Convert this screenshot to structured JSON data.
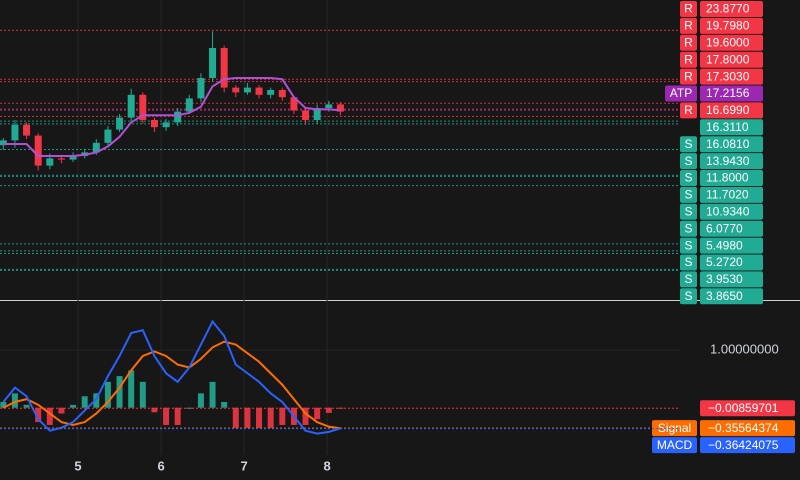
{
  "chart_data": [
    {
      "type": "candlestick",
      "x": [
        4.1,
        4.24,
        4.38,
        4.52,
        4.66,
        4.8,
        4.94,
        5.08,
        5.22,
        5.36,
        5.5,
        5.64,
        5.78,
        5.92,
        6.06,
        6.2,
        6.34,
        6.48,
        6.62,
        6.76,
        6.9,
        7.04,
        7.18,
        7.32,
        7.46,
        7.6,
        7.74,
        7.88,
        8.02,
        8.16
      ],
      "open": [
        14.3,
        14.7,
        16.0,
        15.1,
        12.6,
        13.2,
        13.1,
        13.4,
        13.7,
        14.5,
        15.6,
        16.6,
        18.5,
        16.4,
        15.8,
        16.2,
        17.1,
        18.2,
        19.9,
        22.4,
        19.1,
        18.7,
        19.1,
        18.5,
        18.9,
        18.3,
        17.2,
        16.4,
        17.4,
        17.7
      ],
      "high": [
        14.9,
        16.4,
        16.2,
        15.3,
        13.6,
        13.5,
        13.7,
        14.0,
        14.8,
        15.9,
        16.9,
        19.0,
        18.7,
        16.6,
        16.5,
        17.4,
        18.5,
        20.3,
        23.8,
        22.6,
        19.3,
        19.5,
        19.3,
        19.1,
        19.1,
        18.4,
        17.4,
        17.7,
        18.0,
        17.9
      ],
      "low": [
        13.9,
        14.1,
        14.8,
        12.2,
        12.3,
        12.8,
        12.9,
        13.2,
        13.5,
        14.3,
        15.4,
        16.3,
        16.1,
        15.4,
        15.5,
        15.9,
        16.9,
        17.9,
        19.6,
        18.7,
        18.3,
        18.5,
        18.2,
        18.2,
        18.0,
        16.9,
        16.0,
        16.1,
        17.1,
        16.8
      ],
      "close": [
        14.7,
        16.0,
        15.1,
        12.6,
        13.2,
        13.1,
        13.4,
        13.7,
        14.5,
        15.6,
        16.6,
        18.5,
        16.4,
        15.8,
        16.2,
        17.1,
        18.2,
        19.9,
        22.4,
        19.1,
        18.7,
        19.1,
        18.5,
        18.9,
        18.3,
        17.2,
        16.4,
        17.4,
        17.7,
        17.1
      ],
      "up_color": "#22ab94",
      "down_color": "#f23645",
      "atp_line": {
        "color": "#b14fd6",
        "values": [
          14.4,
          14.4,
          14.4,
          13.4,
          13.4,
          13.4,
          13.4,
          13.5,
          13.7,
          14.2,
          15.0,
          16.2,
          16.8,
          16.8,
          16.8,
          16.8,
          17.0,
          17.5,
          19.2,
          19.8,
          19.9,
          19.9,
          19.9,
          19.9,
          19.8,
          18.3,
          17.4,
          17.3,
          17.3,
          17.2
        ]
      },
      "levels": [
        {
          "tag": "R",
          "value": 23.877,
          "label": "23.8770",
          "color": "#f23645"
        },
        {
          "tag": "R",
          "value": 19.798,
          "label": "19.7980",
          "color": "#f23645"
        },
        {
          "tag": "R",
          "value": 19.6,
          "label": "19.6000",
          "color": "#f23645"
        },
        {
          "tag": "R",
          "value": 17.8,
          "label": "17.8000",
          "color": "#f23645"
        },
        {
          "tag": "R",
          "value": 17.303,
          "label": "17.3030",
          "color": "#f23645"
        },
        {
          "tag": "ATP",
          "value": 17.2156,
          "color": "#9c27b0"
        },
        {
          "tag": "R",
          "value": 16.699,
          "label": "16.6990",
          "color": "#f23645"
        },
        {
          "value": 16.311,
          "label": "16.3110",
          "color": "#22ab94"
        },
        {
          "tag": "S",
          "value": 16.081,
          "label": "16.0810",
          "color": "#22ab94"
        },
        {
          "tag": "S",
          "value": 13.943,
          "label": "13.9430",
          "color": "#22ab94"
        },
        {
          "tag": "S",
          "value": 11.8,
          "label": "11.8000",
          "color": "#22ab94"
        },
        {
          "tag": "S",
          "value": 11.702,
          "label": "11.7020",
          "color": "#22ab94"
        },
        {
          "tag": "S",
          "value": 10.934,
          "label": "10.9340",
          "color": "#22ab94"
        },
        {
          "tag": "S",
          "value": 6.077,
          "label": "6.0770",
          "color": "#22ab94"
        },
        {
          "tag": "S",
          "value": 5.498,
          "label": "5.4980",
          "color": "#22ab94"
        },
        {
          "tag": "S",
          "value": 5.272,
          "label": "5.2720",
          "color": "#22ab94"
        },
        {
          "tag": "S",
          "value": 3.953,
          "label": "3.9530",
          "color": "#22ab94"
        },
        {
          "tag": "S",
          "value": 3.865,
          "label": "3.8650",
          "color": "#22ab94"
        }
      ],
      "xlim": [
        4.06,
        12.25
      ],
      "xticks": [
        5,
        6,
        7,
        8
      ],
      "ylim": [
        1.4,
        26.4
      ]
    },
    {
      "type": "macd",
      "histogram": {
        "up_color": "#22ab94",
        "down_color": "#f23645",
        "values": [
          0.1,
          0.25,
          0.05,
          -0.25,
          -0.3,
          -0.1,
          0.05,
          0.2,
          0.25,
          0.45,
          0.55,
          0.65,
          0.45,
          -0.08,
          -0.3,
          -0.3,
          0.0,
          0.25,
          0.45,
          0.1,
          -0.35,
          -0.35,
          -0.35,
          -0.35,
          -0.3,
          -0.3,
          -0.3,
          -0.2,
          -0.09,
          -0.01
        ],
        "last_value": -0.00859701,
        "last_label": "−0.00859701"
      },
      "series": [
        {
          "name": "Signal",
          "color": "#ff6d00",
          "values": [
            0.0,
            0.1,
            0.15,
            0.05,
            -0.1,
            -0.25,
            -0.3,
            -0.25,
            -0.1,
            0.1,
            0.35,
            0.65,
            0.9,
            0.98,
            0.9,
            0.75,
            0.7,
            0.85,
            1.05,
            1.15,
            1.1,
            0.95,
            0.8,
            0.6,
            0.4,
            0.15,
            -0.1,
            -0.25,
            -0.33,
            -0.36
          ],
          "last_value": -0.35564374,
          "last_label": "−0.35564374"
        },
        {
          "name": "MACD",
          "color": "#2962ff",
          "values": [
            0.1,
            0.35,
            0.2,
            -0.2,
            -0.4,
            -0.35,
            -0.25,
            -0.05,
            0.15,
            0.55,
            0.9,
            1.3,
            1.35,
            0.9,
            0.6,
            0.45,
            0.7,
            1.1,
            1.5,
            1.25,
            0.75,
            0.6,
            0.45,
            0.25,
            0.1,
            -0.15,
            -0.4,
            -0.45,
            -0.42,
            -0.36
          ],
          "last_value": -0.36424075,
          "last_label": "−0.36424075"
        }
      ],
      "ylim": [
        -0.91,
        1.84
      ],
      "yticks": [
        {
          "value": 1,
          "label": "1.00000000"
        }
      ]
    }
  ]
}
